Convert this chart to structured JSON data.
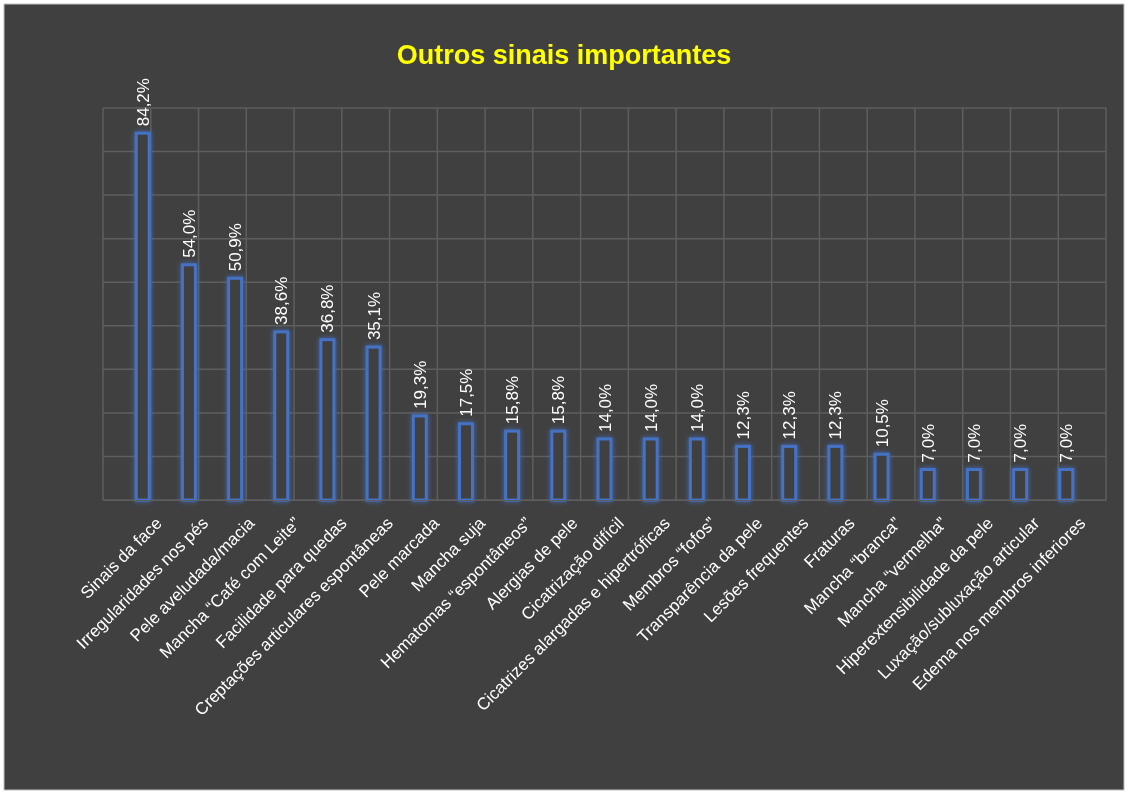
{
  "chart_data": {
    "type": "bar",
    "title": "Outros sinais importantes",
    "categories": [
      "Sinais da face",
      "Irregularidades nos pés",
      "Pele aveludada/macia",
      "Mancha “Café com Leite”",
      "Facilidade para quedas",
      "Creptações articulares espontâneas",
      "Pele marcada",
      "Mancha suja",
      "Hematomas “espontâneos”",
      "Alergias de pele",
      "Cicatrização difícil",
      "Cicatrizes alargadas e hipertróficas",
      "Membros “fofos”",
      "Transparência da pele",
      "Lesões frequentes",
      "Fraturas",
      "Mancha “branca”",
      "Mancha “vermelha”",
      "Hiperextensibilidade da pele",
      "Luxação/subluxação articular",
      "Edema nos membros inferiores"
    ],
    "values": [
      84.2,
      54.0,
      50.9,
      38.6,
      36.8,
      35.1,
      19.3,
      17.5,
      15.8,
      15.8,
      14.0,
      14.0,
      14.0,
      12.3,
      12.3,
      12.3,
      10.5,
      7.0,
      7.0,
      7.0,
      7.0
    ],
    "value_labels": [
      "84,2%",
      "54,0%",
      "50,9%",
      "38,6%",
      "36,8%",
      "35,1%",
      "19,3%",
      "17,5%",
      "15,8%",
      "15,8%",
      "14,0%",
      "14,0%",
      "14,0%",
      "12,3%",
      "12,3%",
      "12,3%",
      "10,5%",
      "7,0%",
      "7,0%",
      "7,0%",
      "7,0%"
    ],
    "color": "#4472c4",
    "ylim": [
      0,
      90
    ],
    "yticks": [
      {
        "value": 0,
        "label": null
      },
      {
        "value": 10,
        "label": null
      },
      {
        "value": 20,
        "label": null
      },
      {
        "value": 30,
        "label": null
      },
      {
        "value": 40,
        "label": null
      },
      {
        "value": 50,
        "label": null
      },
      {
        "value": 60,
        "label": null
      },
      {
        "value": 70,
        "label": null
      },
      {
        "value": 80,
        "label": null
      },
      {
        "value": 90,
        "label": null
      }
    ],
    "grid": true,
    "tick_labels": "x"
  }
}
